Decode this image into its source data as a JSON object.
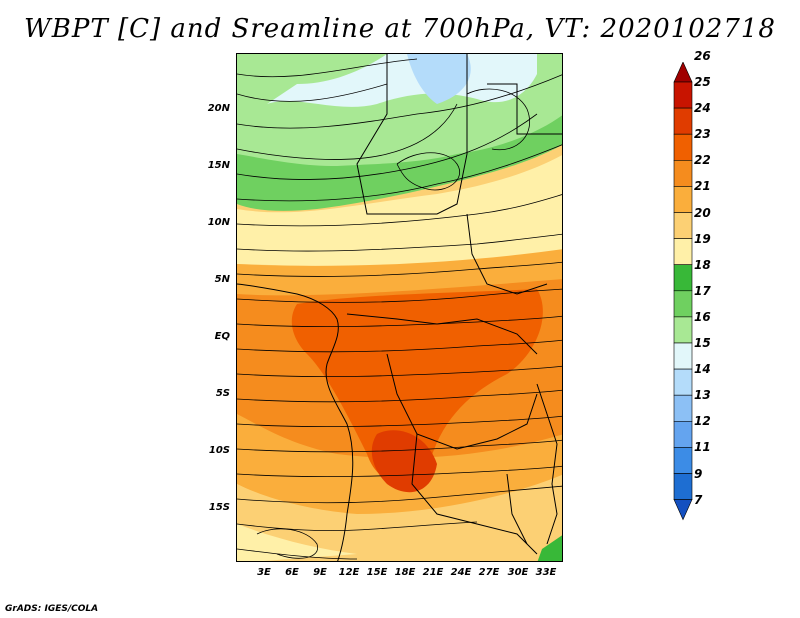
{
  "title": "WBPT [C] and Sreamline at 700hPa, VT: 2020102718",
  "footer": "GrADS: IGES/COLA",
  "lat_labels": [
    "20N",
    "15N",
    "10N",
    "5N",
    "EQ",
    "5S",
    "10S",
    "15S"
  ],
  "lon_labels": [
    "3E",
    "6E",
    "9E",
    "12E",
    "15E",
    "18E",
    "21E",
    "24E",
    "27E",
    "30E",
    "33E"
  ],
  "colorbar": {
    "labels": [
      "26",
      "25",
      "24",
      "23",
      "22",
      "21",
      "20",
      "19",
      "18",
      "17",
      "16",
      "15",
      "14",
      "13",
      "12",
      "11",
      "9",
      "7"
    ],
    "colors": [
      "#a00000",
      "#c81400",
      "#e03c00",
      "#f06000",
      "#f58c1e",
      "#faae3c",
      "#fcd074",
      "#fff0a8",
      "#38b838",
      "#6fd060",
      "#a8e894",
      "#e2f7fa",
      "#b4dcfa",
      "#8cc0f5",
      "#64a4ef",
      "#3c8ce6",
      "#1e6ed2",
      "#1450c0"
    ]
  },
  "map_fields": {
    "variable": "WBPT",
    "units": "C",
    "level": "700hPa",
    "overlay": "streamlines"
  }
}
